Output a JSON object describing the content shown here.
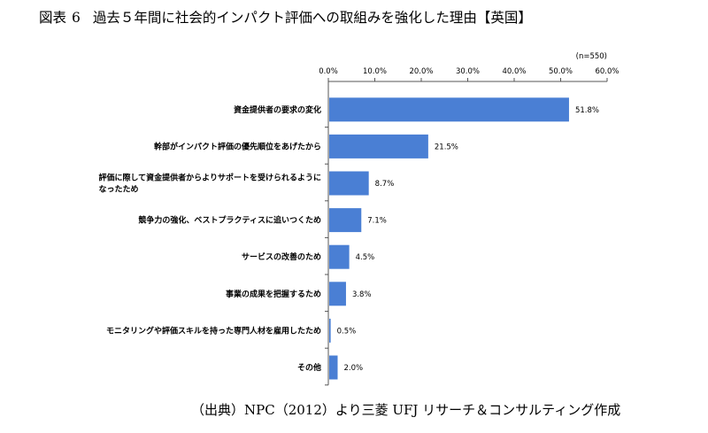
{
  "figure": {
    "label": "図表",
    "number": "6",
    "title": "過去５年間に社会的インパクト評価への取組みを強化した理由【英国】"
  },
  "chart_data": {
    "type": "bar",
    "orientation": "horizontal",
    "sample_note": "(n=550)",
    "xlim": [
      0,
      60
    ],
    "ticks": [
      "0.0%",
      "10.0%",
      "20.0%",
      "30.0%",
      "40.0%",
      "50.0%",
      "60.0%"
    ],
    "tick_values": [
      0,
      10,
      20,
      30,
      40,
      50,
      60
    ],
    "categories": [
      [
        "資金提供者の要求の変化"
      ],
      [
        "幹部がインパクト評価の優先順位をあげたから"
      ],
      [
        "評価に際して資金提供者からよりサポートを受けられるように",
        "なったため"
      ],
      [
        "競争力の強化、ベストプラクティスに追いつくため"
      ],
      [
        "サービスの改善のため"
      ],
      [
        "事業の成果を把握するため"
      ],
      [
        "モニタリングや評価スキルを持った専門人材を雇用したため"
      ],
      [
        "その他"
      ]
    ],
    "values": [
      51.8,
      21.5,
      8.7,
      7.1,
      4.5,
      3.8,
      0.5,
      2.0
    ],
    "value_labels": [
      "51.8%",
      "21.5%",
      "8.7%",
      "7.1%",
      "4.5%",
      "3.8%",
      "0.5%",
      "2.0%"
    ],
    "bar_color": "#4a7fd4",
    "grid": false
  },
  "source": "（出典）NPC（2012）より三菱 UFJ リサーチ＆コンサルティング作成"
}
